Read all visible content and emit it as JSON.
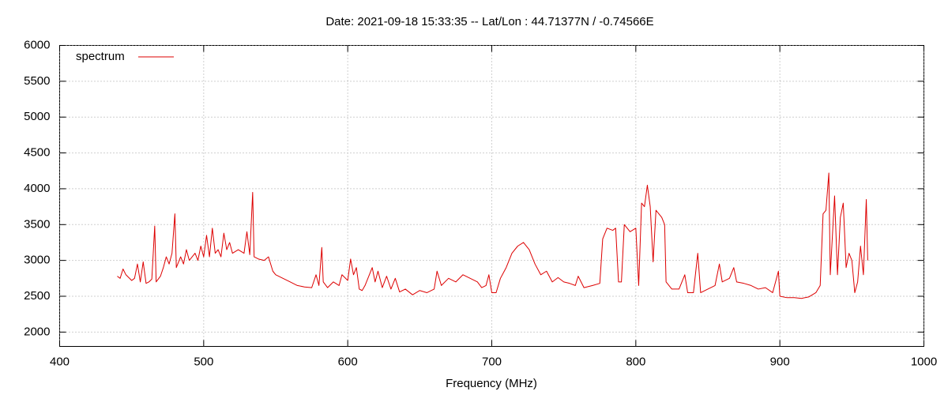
{
  "chart_data": {
    "type": "line",
    "title": "Date: 2021-09-18 15:33:35  --  Lat/Lon : 44.71377N / -0.74566E",
    "x_label": "Frequency (MHz)",
    "xlim": [
      400,
      1000
    ],
    "xticks": [
      400,
      500,
      600,
      700,
      800,
      900,
      1000
    ],
    "ylim": [
      1800,
      6000
    ],
    "yticks": [
      2000,
      2500,
      3000,
      3500,
      4000,
      4500,
      5000,
      5500,
      6000
    ],
    "grid": true,
    "legend": "top-left",
    "x": [
      440,
      442,
      444,
      446,
      448,
      450,
      452,
      454,
      456,
      458,
      460,
      462,
      464,
      466,
      467,
      470,
      472,
      474,
      476,
      478,
      480,
      481,
      484,
      486,
      488,
      490,
      492,
      494,
      496,
      498,
      500,
      502,
      504,
      506,
      508,
      510,
      512,
      514,
      516,
      518,
      520,
      524,
      528,
      530,
      532,
      534,
      535,
      538,
      542,
      545,
      548,
      550,
      555,
      560,
      565,
      570,
      575,
      578,
      580,
      582,
      583,
      586,
      590,
      594,
      596,
      600,
      602,
      604,
      606,
      608,
      610,
      612,
      615,
      617,
      619,
      621,
      624,
      627,
      630,
      633,
      636,
      640,
      645,
      650,
      655,
      660,
      662,
      665,
      670,
      675,
      680,
      685,
      690,
      693,
      696,
      698,
      700,
      703,
      706,
      710,
      714,
      718,
      722,
      726,
      730,
      734,
      738,
      742,
      746,
      750,
      754,
      758,
      760,
      764,
      770,
      775,
      777,
      780,
      784,
      786,
      788,
      790,
      792,
      796,
      800,
      802,
      804,
      806,
      808,
      810,
      812,
      814,
      818,
      820,
      821,
      825,
      830,
      834,
      836,
      840,
      843,
      845,
      850,
      855,
      858,
      860,
      865,
      868,
      870,
      875,
      880,
      885,
      890,
      895,
      899,
      900,
      905,
      910,
      915,
      920,
      925,
      928,
      930,
      932,
      934,
      935,
      938,
      940,
      942,
      944,
      946,
      948,
      950,
      952,
      954,
      956,
      958,
      960,
      961
    ],
    "series": [
      {
        "name": "spectrum",
        "color": "#dd0000",
        "values": [
          2780,
          2750,
          2880,
          2800,
          2760,
          2720,
          2750,
          2950,
          2700,
          2980,
          2680,
          2700,
          2740,
          3480,
          2700,
          2780,
          2900,
          3050,
          2950,
          3100,
          3650,
          2900,
          3050,
          2950,
          3150,
          3000,
          3050,
          3100,
          3000,
          3200,
          3050,
          3350,
          3050,
          3450,
          3100,
          3150,
          3050,
          3380,
          3150,
          3250,
          3100,
          3150,
          3100,
          3400,
          3080,
          3950,
          3050,
          3020,
          3000,
          3050,
          2850,
          2800,
          2750,
          2700,
          2650,
          2630,
          2620,
          2800,
          2650,
          3180,
          2700,
          2620,
          2700,
          2650,
          2800,
          2720,
          3020,
          2800,
          2900,
          2600,
          2580,
          2650,
          2800,
          2900,
          2700,
          2850,
          2620,
          2780,
          2600,
          2750,
          2560,
          2600,
          2520,
          2580,
          2550,
          2600,
          2850,
          2650,
          2750,
          2700,
          2800,
          2750,
          2700,
          2620,
          2650,
          2800,
          2550,
          2550,
          2750,
          2900,
          3100,
          3200,
          3250,
          3150,
          2950,
          2800,
          2850,
          2700,
          2760,
          2700,
          2680,
          2650,
          2780,
          2620,
          2650,
          2680,
          3300,
          3450,
          3420,
          3450,
          2700,
          2700,
          3500,
          3400,
          3450,
          2650,
          3800,
          3750,
          4050,
          3750,
          2980,
          3700,
          3600,
          3500,
          2700,
          2600,
          2600,
          2800,
          2550,
          2550,
          3100,
          2550,
          2600,
          2650,
          2950,
          2700,
          2750,
          2900,
          2700,
          2680,
          2650,
          2600,
          2620,
          2550,
          2850,
          2500,
          2480,
          2480,
          2470,
          2490,
          2550,
          2650,
          3650,
          3700,
          4220,
          2800,
          3900,
          2800,
          3600,
          3800,
          2900,
          3100,
          3000,
          2550,
          2700,
          3200,
          2800,
          3850,
          3000
        ]
      }
    ]
  }
}
